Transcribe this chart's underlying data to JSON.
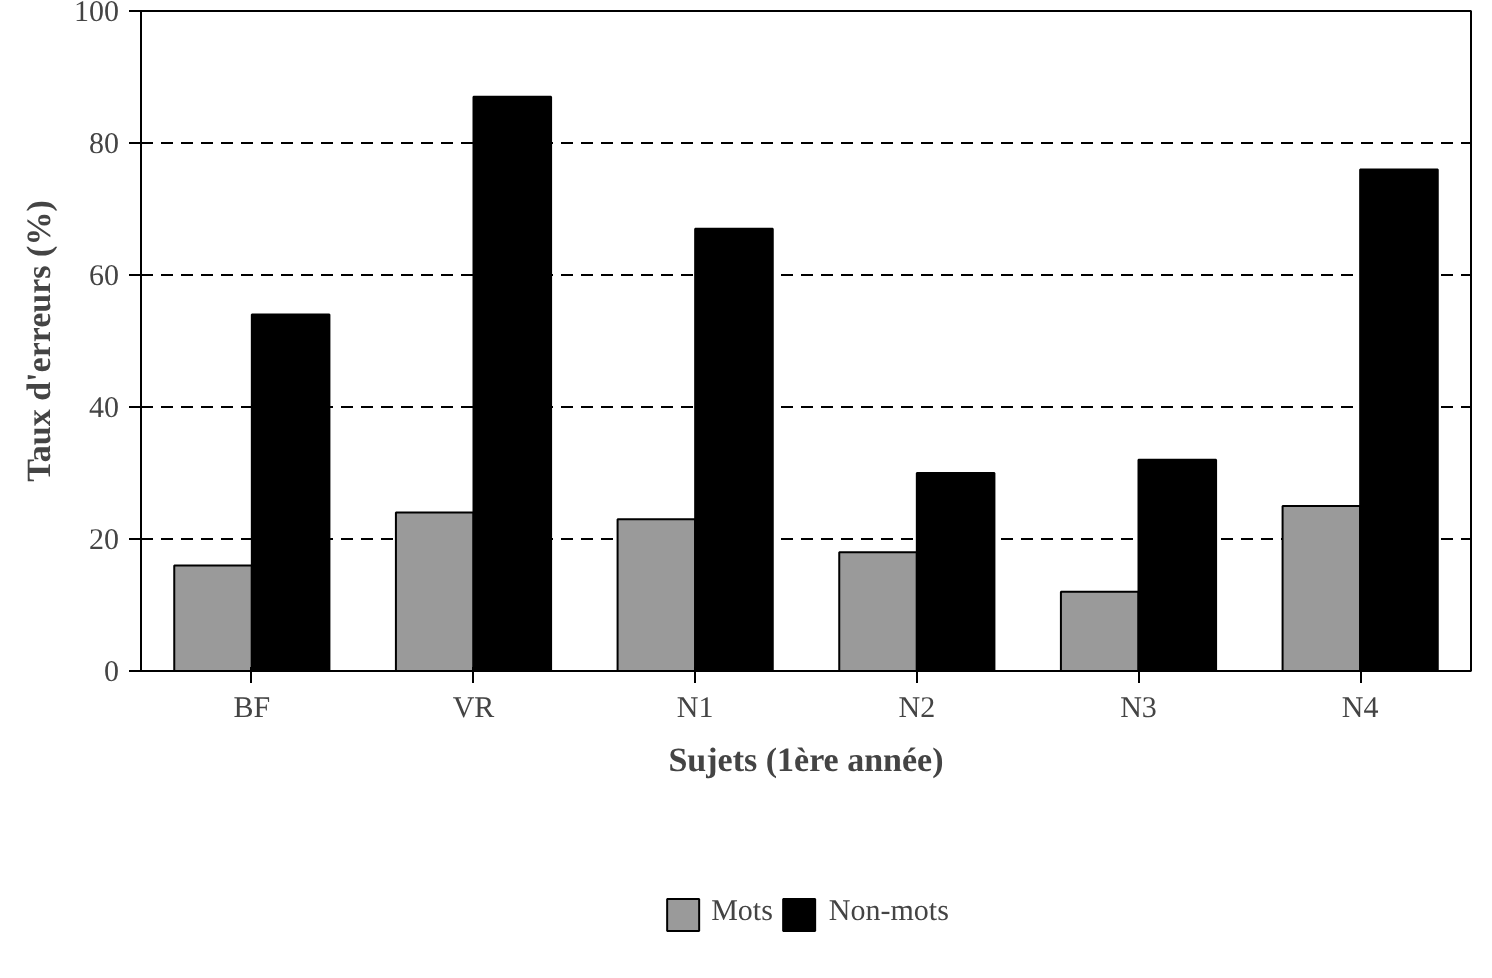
{
  "chart_data": {
    "type": "bar",
    "xlabel": "Sujets (1ère année)",
    "ylabel": "Taux d'erreurs (%)",
    "categories": [
      "BF",
      "VR",
      "N1",
      "N2",
      "N3",
      "N4"
    ],
    "series": [
      {
        "name": "Mots",
        "color": "#9a9a9a",
        "values": [
          16,
          24,
          23,
          18,
          12,
          25
        ]
      },
      {
        "name": "Non-mots",
        "color": "#000000",
        "values": [
          54,
          87,
          67,
          30,
          32,
          76
        ]
      }
    ],
    "ylim": [
      0,
      100
    ],
    "yticks": [
      0,
      20,
      40,
      60,
      80,
      100
    ],
    "grid": "y",
    "legend": "bottom"
  }
}
